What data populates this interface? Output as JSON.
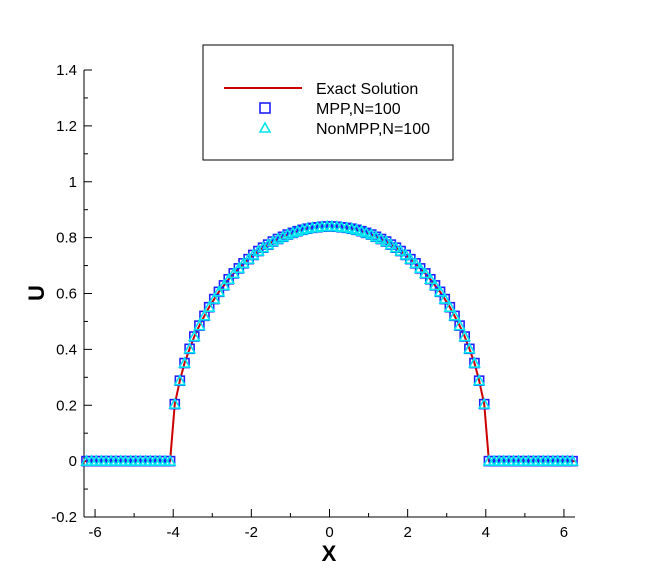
{
  "chart_data": {
    "type": "line",
    "title": "",
    "xlabel": "X",
    "ylabel": "U",
    "xlim": [
      -6.283,
      6.283
    ],
    "ylim": [
      -0.2,
      1.4
    ],
    "xticks": [
      "-6",
      "-4",
      "-2",
      "0",
      "2",
      "4",
      "6"
    ],
    "yticks": [
      "-0.2",
      "0",
      "0.2",
      "0.4",
      "0.6",
      "0.8",
      "1",
      "1.2",
      "1.4"
    ],
    "grid": false,
    "legend_placement": "top-center",
    "colors": {
      "exact": "#cc0000",
      "mpp": "#2020ff",
      "nonmpp": "#00e5ee",
      "axis": "#000000"
    },
    "legend": [
      "Exact Solution",
      "MPP,N=100",
      "NonMPP,N=100"
    ],
    "x": [
      -6.22,
      -6.09,
      -5.97,
      -5.84,
      -5.72,
      -5.59,
      -5.47,
      -5.34,
      -5.22,
      -5.09,
      -4.96,
      -4.84,
      -4.71,
      -4.59,
      -4.46,
      -4.34,
      -4.21,
      -4.08,
      -3.96,
      -3.83,
      -3.71,
      -3.58,
      -3.46,
      -3.33,
      -3.2,
      -3.08,
      -2.95,
      -2.83,
      -2.7,
      -2.58,
      -2.45,
      -2.32,
      -2.2,
      -2.07,
      -1.95,
      -1.82,
      -1.7,
      -1.57,
      -1.45,
      -1.32,
      -1.19,
      -1.07,
      -0.94,
      -0.82,
      -0.69,
      -0.57,
      -0.44,
      -0.31,
      -0.19,
      -0.06,
      0.06,
      0.19,
      0.31,
      0.44,
      0.57,
      0.69,
      0.82,
      0.94,
      1.07,
      1.19,
      1.32,
      1.45,
      1.57,
      1.7,
      1.82,
      1.95,
      2.07,
      2.2,
      2.32,
      2.45,
      2.58,
      2.7,
      2.83,
      2.95,
      3.08,
      3.2,
      3.33,
      3.46,
      3.58,
      3.71,
      3.83,
      3.96,
      4.08,
      4.21,
      4.34,
      4.46,
      4.59,
      4.71,
      4.84,
      4.96,
      5.09,
      5.22,
      5.34,
      5.47,
      5.59,
      5.72,
      5.84,
      5.97,
      6.09,
      6.22
    ],
    "series": [
      {
        "name": "Exact Solution",
        "style": "line",
        "x": [
          -6.283,
          -4.08,
          -3.96,
          -3.83,
          -3.71,
          -3.58,
          -3.46,
          -3.33,
          -3.2,
          -3.08,
          -2.95,
          -2.83,
          -2.7,
          -2.58,
          -2.45,
          -2.32,
          -2.2,
          -2.07,
          -1.95,
          -1.82,
          -1.7,
          -1.57,
          -1.45,
          -1.32,
          -1.19,
          -1.07,
          -0.94,
          -0.82,
          -0.69,
          -0.57,
          -0.44,
          -0.31,
          -0.19,
          -0.06,
          0.06,
          0.19,
          0.31,
          0.44,
          0.57,
          0.69,
          0.82,
          0.94,
          1.07,
          1.19,
          1.32,
          1.45,
          1.57,
          1.7,
          1.82,
          1.95,
          2.07,
          2.2,
          2.32,
          2.45,
          2.58,
          2.7,
          2.83,
          2.95,
          3.08,
          3.2,
          3.33,
          3.46,
          3.58,
          3.71,
          3.83,
          3.96,
          4.08,
          6.283
        ],
        "y": [
          0,
          0,
          0.204,
          0.288,
          0.351,
          0.402,
          0.446,
          0.485,
          0.52,
          0.551,
          0.58,
          0.606,
          0.629,
          0.651,
          0.672,
          0.69,
          0.708,
          0.723,
          0.738,
          0.752,
          0.764,
          0.775,
          0.786,
          0.795,
          0.803,
          0.811,
          0.817,
          0.823,
          0.828,
          0.832,
          0.835,
          0.837,
          0.839,
          0.84,
          0.84,
          0.839,
          0.837,
          0.835,
          0.832,
          0.828,
          0.823,
          0.817,
          0.811,
          0.803,
          0.795,
          0.786,
          0.775,
          0.764,
          0.752,
          0.738,
          0.723,
          0.708,
          0.69,
          0.672,
          0.651,
          0.629,
          0.606,
          0.58,
          0.551,
          0.52,
          0.485,
          0.446,
          0.402,
          0.351,
          0.288,
          0.204,
          0,
          0
        ]
      },
      {
        "name": "MPP,N=100",
        "style": "square",
        "y": [
          0,
          0,
          0,
          0,
          0,
          0,
          0,
          0,
          0,
          0,
          0,
          0,
          0,
          0,
          0,
          0,
          0,
          0,
          0.204,
          0.288,
          0.351,
          0.402,
          0.446,
          0.485,
          0.52,
          0.551,
          0.58,
          0.606,
          0.629,
          0.651,
          0.672,
          0.69,
          0.708,
          0.723,
          0.738,
          0.752,
          0.764,
          0.775,
          0.786,
          0.795,
          0.803,
          0.811,
          0.817,
          0.823,
          0.828,
          0.832,
          0.835,
          0.837,
          0.839,
          0.84,
          0.84,
          0.839,
          0.837,
          0.835,
          0.832,
          0.828,
          0.823,
          0.817,
          0.811,
          0.803,
          0.795,
          0.786,
          0.775,
          0.764,
          0.752,
          0.738,
          0.723,
          0.708,
          0.69,
          0.672,
          0.651,
          0.629,
          0.606,
          0.58,
          0.551,
          0.52,
          0.485,
          0.446,
          0.402,
          0.351,
          0.288,
          0.204,
          0,
          0,
          0,
          0,
          0,
          0,
          0,
          0,
          0,
          0,
          0,
          0,
          0,
          0,
          0,
          0,
          0,
          0
        ]
      },
      {
        "name": "NonMPP,N=100",
        "style": "triangle",
        "y": [
          0,
          0,
          0,
          0,
          0,
          0,
          0,
          0,
          0,
          0,
          0,
          0,
          0,
          0,
          0,
          0,
          0,
          0,
          0.204,
          0.288,
          0.351,
          0.402,
          0.446,
          0.485,
          0.52,
          0.551,
          0.58,
          0.606,
          0.629,
          0.651,
          0.672,
          0.69,
          0.708,
          0.723,
          0.738,
          0.752,
          0.764,
          0.775,
          0.786,
          0.795,
          0.803,
          0.811,
          0.817,
          0.823,
          0.828,
          0.832,
          0.835,
          0.837,
          0.839,
          0.84,
          0.84,
          0.839,
          0.837,
          0.835,
          0.832,
          0.828,
          0.823,
          0.817,
          0.811,
          0.803,
          0.795,
          0.786,
          0.775,
          0.764,
          0.752,
          0.738,
          0.723,
          0.708,
          0.69,
          0.672,
          0.651,
          0.629,
          0.606,
          0.58,
          0.551,
          0.52,
          0.485,
          0.446,
          0.402,
          0.351,
          0.288,
          0.204,
          0,
          0,
          0,
          0,
          0,
          0,
          0,
          0,
          0,
          0,
          0,
          0,
          0,
          0,
          0,
          0,
          0,
          0
        ]
      }
    ]
  }
}
